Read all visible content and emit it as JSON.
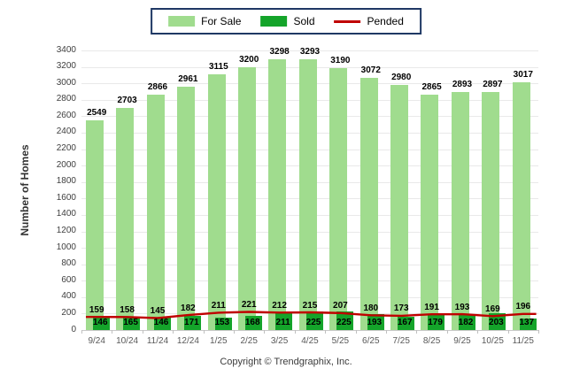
{
  "legend": {
    "items": [
      {
        "label": "For Sale",
        "type": "swatch",
        "color": "#A0DC8E"
      },
      {
        "label": "Sold",
        "type": "swatch",
        "color": "#14A42A"
      },
      {
        "label": "Pended",
        "type": "line",
        "color": "#C00000"
      }
    ],
    "border_color": "#1F3864"
  },
  "chart_data": {
    "type": "bar",
    "categories": [
      "9/24",
      "10/24",
      "11/24",
      "12/24",
      "1/25",
      "2/25",
      "3/25",
      "4/25",
      "5/25",
      "6/25",
      "7/25",
      "8/25",
      "9/25",
      "10/25",
      "11/25"
    ],
    "series": [
      {
        "name": "For Sale",
        "type": "bar",
        "color": "#A0DC8E",
        "values": [
          2549,
          2703,
          2866,
          2961,
          3115,
          3200,
          3298,
          3293,
          3190,
          3072,
          2980,
          2865,
          2893,
          2897,
          3017
        ]
      },
      {
        "name": "Sold",
        "type": "bar",
        "color": "#14A42A",
        "values": [
          146,
          165,
          146,
          171,
          153,
          168,
          211,
          225,
          225,
          193,
          167,
          179,
          182,
          203,
          137
        ]
      },
      {
        "name": "Pended",
        "type": "line",
        "color": "#C00000",
        "values": [
          159,
          158,
          145,
          182,
          211,
          221,
          212,
          215,
          207,
          180,
          173,
          191,
          193,
          169,
          196
        ]
      }
    ],
    "title": "",
    "xlabel": "",
    "ylabel": "Number of Homes",
    "ylim": [
      0,
      3400
    ],
    "ytick_step": 200,
    "grid": true,
    "legend_position": "top",
    "value_labels": true
  },
  "footer": {
    "copyright": "Copyright © Trendgraphix, Inc."
  }
}
